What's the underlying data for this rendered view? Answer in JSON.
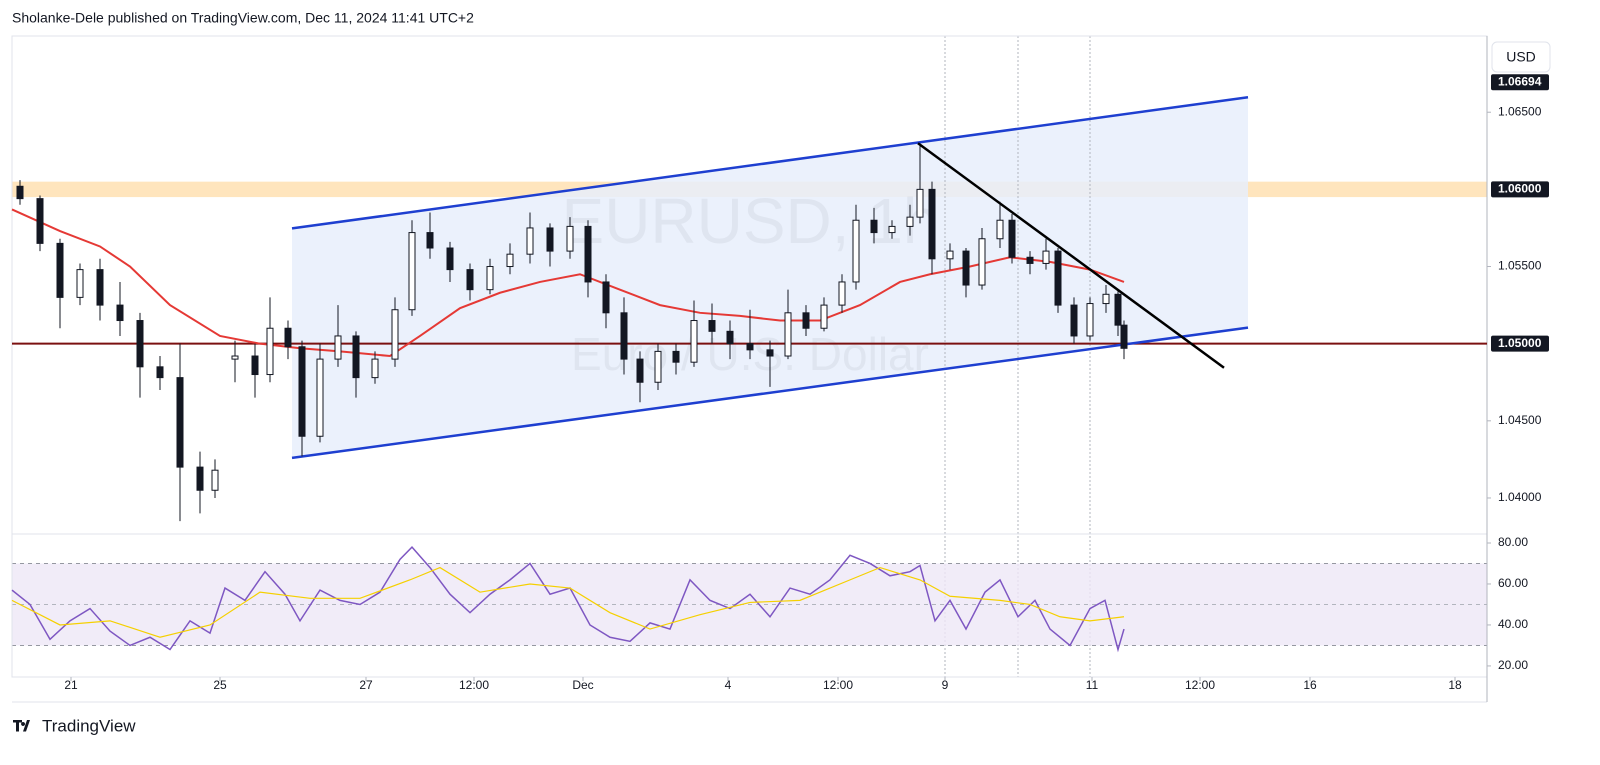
{
  "header": {
    "title": "Sholanke-Dele published on TradingView.com, Dec 11, 2024 11:41 UTC+2"
  },
  "footer": {
    "brand": "TradingView"
  },
  "currency": "USD",
  "chart_data": [
    {
      "type": "candlestick",
      "watermark": "EURUSD, 1h",
      "watermark_sub": "Euro / U.S. Dollar",
      "color": "#131722",
      "xlim": [
        12,
        1487
      ],
      "ylim": [
        1.03773,
        1.06994
      ],
      "yticks": [
        {
          "value": 1.04,
          "label": "1.04000"
        },
        {
          "value": 1.045,
          "label": "1.04500"
        },
        {
          "value": 1.055,
          "label": "1.05500"
        },
        {
          "value": 1.065,
          "label": "1.06500"
        }
      ],
      "price_labels": [
        {
          "value": 1.06694,
          "label": "1.06694"
        },
        {
          "value": 1.06,
          "label": "1.06000"
        },
        {
          "value": 1.05,
          "label": "1.05000"
        }
      ],
      "x": [
        20,
        40,
        60,
        80,
        100,
        120,
        140,
        160,
        180,
        200,
        215,
        235,
        255,
        270,
        288,
        302,
        320,
        338,
        356,
        375,
        395,
        412,
        430,
        450,
        470,
        490,
        510,
        530,
        550,
        570,
        588,
        606,
        624,
        640,
        658,
        676,
        694,
        712,
        730,
        750,
        770,
        788,
        806,
        824,
        842,
        856,
        874,
        892,
        910,
        920,
        932,
        950,
        966,
        982,
        1000,
        1012,
        1030,
        1046,
        1058,
        1074,
        1090,
        1106,
        1118,
        1124
      ],
      "open": [
        1.0602,
        1.0594,
        1.0565,
        1.053,
        1.0548,
        1.0525,
        1.0515,
        1.0485,
        1.0478,
        1.042,
        1.0405,
        1.049,
        1.0492,
        1.048,
        1.051,
        1.0498,
        1.044,
        1.049,
        1.0505,
        1.0478,
        1.049,
        1.0522,
        1.0572,
        1.0562,
        1.0548,
        1.0535,
        1.055,
        1.0558,
        1.0575,
        1.056,
        1.0576,
        1.054,
        1.052,
        1.049,
        1.0475,
        1.0495,
        1.0488,
        1.0515,
        1.0508,
        1.05,
        1.0496,
        1.0492,
        1.052,
        1.051,
        1.0525,
        1.054,
        1.058,
        1.0572,
        1.0576,
        1.0582,
        1.06,
        1.0555,
        1.056,
        1.0538,
        1.0568,
        1.058,
        1.0556,
        1.0552,
        1.056,
        1.0525,
        1.0505,
        1.0526,
        1.0532,
        1.0512
      ],
      "high": [
        1.0606,
        1.0596,
        1.0568,
        1.0552,
        1.0555,
        1.054,
        1.052,
        1.0492,
        1.05,
        1.043,
        1.0425,
        1.0502,
        1.05,
        1.053,
        1.0515,
        1.0502,
        1.05,
        1.0525,
        1.0508,
        1.0495,
        1.053,
        1.058,
        1.0585,
        1.0566,
        1.0552,
        1.0555,
        1.0565,
        1.0585,
        1.0578,
        1.0582,
        1.058,
        1.0545,
        1.053,
        1.0495,
        1.05,
        1.05,
        1.0528,
        1.0526,
        1.0515,
        1.0522,
        1.0502,
        1.0535,
        1.0525,
        1.053,
        1.0545,
        1.059,
        1.0588,
        1.058,
        1.059,
        1.0628,
        1.0605,
        1.0565,
        1.0562,
        1.0575,
        1.0592,
        1.0584,
        1.056,
        1.0568,
        1.0562,
        1.053,
        1.053,
        1.0538,
        1.0535,
        1.0515
      ],
      "low": [
        1.059,
        1.056,
        1.051,
        1.0525,
        1.0515,
        1.0505,
        1.0465,
        1.047,
        1.0385,
        1.039,
        1.04,
        1.0475,
        1.0465,
        1.0475,
        1.049,
        1.0427,
        1.0436,
        1.0485,
        1.0465,
        1.0474,
        1.0485,
        1.0518,
        1.0555,
        1.054,
        1.0528,
        1.0532,
        1.0545,
        1.0552,
        1.055,
        1.0555,
        1.053,
        1.051,
        1.048,
        1.0462,
        1.047,
        1.048,
        1.0485,
        1.05,
        1.049,
        1.049,
        1.0472,
        1.049,
        1.0505,
        1.0508,
        1.052,
        1.0535,
        1.0565,
        1.0568,
        1.057,
        1.0578,
        1.0545,
        1.0548,
        1.053,
        1.0535,
        1.0562,
        1.0552,
        1.0545,
        1.0548,
        1.052,
        1.05,
        1.0502,
        1.052,
        1.0505,
        1.049
      ],
      "close": [
        1.0594,
        1.0565,
        1.053,
        1.0548,
        1.0525,
        1.0515,
        1.0485,
        1.0478,
        1.042,
        1.0405,
        1.0418,
        1.0492,
        1.048,
        1.051,
        1.0498,
        1.044,
        1.049,
        1.0505,
        1.0478,
        1.049,
        1.0522,
        1.0572,
        1.0562,
        1.0548,
        1.0535,
        1.055,
        1.0558,
        1.0575,
        1.056,
        1.0576,
        1.054,
        1.052,
        1.049,
        1.0475,
        1.0495,
        1.0488,
        1.0515,
        1.0508,
        1.05,
        1.0496,
        1.0492,
        1.052,
        1.051,
        1.0525,
        1.054,
        1.058,
        1.0572,
        1.0576,
        1.0582,
        1.06,
        1.0555,
        1.056,
        1.0538,
        1.0568,
        1.058,
        1.0556,
        1.0552,
        1.056,
        1.0525,
        1.0505,
        1.0526,
        1.0532,
        1.0512,
        1.0497
      ],
      "ma": {
        "color": "#e53935",
        "x": [
          12,
          60,
          100,
          130,
          170,
          220,
          260,
          300,
          340,
          390,
          420,
          460,
          500,
          540,
          580,
          620,
          660,
          700,
          740,
          780,
          820,
          860,
          900,
          930,
          970,
          1010,
          1050,
          1090,
          1124
        ],
        "values": [
          1.0587,
          1.0573,
          1.0563,
          1.055,
          1.0525,
          1.0505,
          1.05,
          1.0497,
          1.0495,
          1.0492,
          1.0505,
          1.0523,
          1.0533,
          1.054,
          1.0545,
          1.0535,
          1.0525,
          1.052,
          1.0518,
          1.0515,
          1.0515,
          1.0525,
          1.054,
          1.0545,
          1.055,
          1.0556,
          1.0553,
          1.0548,
          1.054
        ]
      },
      "channel": {
        "color": "#1e3fd0",
        "fill": "#e8effc",
        "upper": {
          "x": [
            292,
            1248
          ],
          "y": [
            1.05747,
            1.06597
          ]
        },
        "lower": {
          "x": [
            292,
            1248
          ],
          "y": [
            1.0426,
            1.05104
          ]
        }
      },
      "trendline": {
        "color": "#000000",
        "x": [
          918,
          1224
        ],
        "y": [
          1.06299,
          1.04844
        ]
      },
      "hline": {
        "value": 1.05,
        "color": "#7b1010"
      },
      "zone": {
        "from": 1.0595,
        "to": 1.0605,
        "color": "#ffe0b2"
      },
      "vlines": [
        945,
        1018,
        1090
      ]
    },
    {
      "type": "line",
      "xlim": [
        12,
        1487
      ],
      "ylim": [
        14.6,
        83.9
      ],
      "yticks": [
        {
          "value": 20,
          "label": "20.00"
        },
        {
          "value": 40,
          "label": "40.00"
        },
        {
          "value": 60,
          "label": "60.00"
        },
        {
          "value": 80,
          "label": "80.00"
        }
      ],
      "band": [
        30,
        70
      ],
      "band_color": "#ede7f6",
      "midline": 50,
      "xticks": [
        {
          "value": 71,
          "label": "21"
        },
        {
          "value": 220,
          "label": "25"
        },
        {
          "value": 366,
          "label": "27"
        },
        {
          "value": 474,
          "label": "12:00"
        },
        {
          "value": 583,
          "label": "Dec"
        },
        {
          "value": 728,
          "label": "4"
        },
        {
          "value": 838,
          "label": "12:00"
        },
        {
          "value": 945,
          "label": "9"
        },
        {
          "value": 1092,
          "label": "11"
        },
        {
          "value": 1200,
          "label": "12:00"
        },
        {
          "value": 1310,
          "label": "16"
        },
        {
          "value": 1455,
          "label": "18"
        }
      ],
      "series": [
        {
          "color": "#7e57c2",
          "x": [
            12,
            30,
            50,
            70,
            90,
            110,
            130,
            150,
            170,
            190,
            210,
            225,
            245,
            265,
            285,
            300,
            320,
            340,
            360,
            380,
            400,
            412,
            430,
            450,
            470,
            490,
            510,
            530,
            550,
            570,
            590,
            610,
            630,
            650,
            670,
            690,
            710,
            730,
            750,
            770,
            790,
            810,
            830,
            850,
            870,
            890,
            910,
            920,
            935,
            950,
            966,
            985,
            1000,
            1018,
            1035,
            1050,
            1070,
            1090,
            1105,
            1118,
            1124
          ],
          "values": [
            57,
            50,
            33,
            42,
            48,
            37,
            30,
            34,
            28,
            42,
            36,
            58,
            52,
            66,
            55,
            42,
            57,
            52,
            50,
            56,
            72,
            78,
            68,
            55,
            46,
            55,
            62,
            70,
            55,
            58,
            40,
            34,
            32,
            41,
            38,
            62,
            52,
            48,
            55,
            44,
            58,
            55,
            62,
            74,
            70,
            64,
            66,
            69,
            42,
            52,
            38,
            56,
            62,
            44,
            52,
            38,
            30,
            48,
            52,
            28,
            38
          ]
        },
        {
          "color": "#f5d000",
          "x": [
            12,
            60,
            110,
            160,
            210,
            260,
            310,
            360,
            410,
            440,
            480,
            530,
            570,
            610,
            650,
            700,
            750,
            800,
            850,
            880,
            920,
            950,
            1000,
            1030,
            1060,
            1090,
            1124
          ],
          "values": [
            52,
            40,
            42,
            34,
            40,
            56,
            53,
            53,
            62,
            68,
            56,
            60,
            58,
            46,
            38,
            45,
            51,
            52,
            62,
            68,
            62,
            54,
            52,
            50,
            44,
            42,
            44
          ]
        }
      ]
    }
  ]
}
